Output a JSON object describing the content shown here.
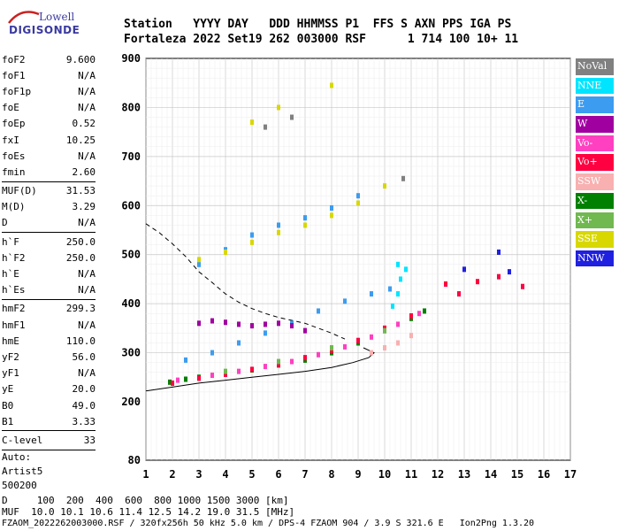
{
  "logo": {
    "line1": "Lowell",
    "line2": "DIGISONDE"
  },
  "header": {
    "line1": "Station   YYYY DAY   DDD HHMMSS P1  FFS S AXN PPS IGA PS",
    "line2": "Fortaleza 2022 Set19 262 003000 RSF      1 714 100 10+ 11"
  },
  "params": [
    {
      "k": "foF2",
      "v": "9.600"
    },
    {
      "k": "foF1",
      "v": "N/A"
    },
    {
      "k": "foF1p",
      "v": "N/A"
    },
    {
      "k": "foE",
      "v": "N/A"
    },
    {
      "k": "foEp",
      "v": "0.52"
    },
    {
      "k": "fxI",
      "v": "10.25"
    },
    {
      "k": "foEs",
      "v": "N/A"
    },
    {
      "k": "fmin",
      "v": "2.60"
    },
    {
      "k": "MUF(D)",
      "v": "31.53"
    },
    {
      "k": "M(D)",
      "v": "3.29"
    },
    {
      "k": "D",
      "v": "N/A"
    },
    {
      "k": "h`F",
      "v": "250.0"
    },
    {
      "k": "h`F2",
      "v": "250.0"
    },
    {
      "k": "h`E",
      "v": "N/A"
    },
    {
      "k": "h`Es",
      "v": "N/A"
    },
    {
      "k": "hmF2",
      "v": "299.3"
    },
    {
      "k": "hmF1",
      "v": "N/A"
    },
    {
      "k": "hmE",
      "v": "110.0"
    },
    {
      "k": "yF2",
      "v": "56.0"
    },
    {
      "k": "yF1",
      "v": "N/A"
    },
    {
      "k": "yE",
      "v": "20.0"
    },
    {
      "k": "B0",
      "v": "49.0"
    },
    {
      "k": "B1",
      "v": "3.33"
    },
    {
      "k": "C-level",
      "v": "33"
    }
  ],
  "auto": [
    "Auto:",
    "Artist5",
    "500200"
  ],
  "legend": [
    {
      "label": "NoVal",
      "color": "#808080"
    },
    {
      "label": "NNE",
      "color": "#00e5ff"
    },
    {
      "label": "E",
      "color": "#3c9cf0"
    },
    {
      "label": "W",
      "color": "#a000a0"
    },
    {
      "label": "Vo-",
      "color": "#ff40c0"
    },
    {
      "label": "Vo+",
      "color": "#ff0040"
    },
    {
      "label": "SSW",
      "color": "#f8b0b0"
    },
    {
      "label": "X-",
      "color": "#008000"
    },
    {
      "label": "X+",
      "color": "#70b850"
    },
    {
      "label": "SSE",
      "color": "#d8d800"
    },
    {
      "label": "NNW",
      "color": "#2020e0"
    }
  ],
  "bottom": {
    "line1": "D     100  200  400  600  800 1000 1500 3000 [km]",
    "line2": "MUF  10.0 10.1 10.6 11.4 12.5 14.2 19.0 31.5 [MHz]",
    "line3": "FZAOM_2022262003000.RSF / 320fx256h 50 kHz 5.0 km / DPS-4 FZAOM 904 / 3.9 S 321.6 E   Ion2Png 1.3.20"
  },
  "chart_data": {
    "type": "scatter",
    "xlim": [
      1,
      17
    ],
    "ylim": [
      80,
      900
    ],
    "x_ticks": [
      1,
      2,
      3,
      4,
      5,
      6,
      7,
      8,
      9,
      10,
      11,
      12,
      13,
      14,
      15,
      16,
      17
    ],
    "y_ticks": [
      80,
      200,
      300,
      400,
      500,
      600,
      700,
      800,
      900
    ],
    "grid": true,
    "series": [
      {
        "name": "X-",
        "color": "#008000",
        "points": [
          [
            1.9,
            240
          ],
          [
            2.5,
            246
          ],
          [
            3.0,
            250
          ],
          [
            4.0,
            258
          ],
          [
            5.0,
            265
          ],
          [
            6.0,
            275
          ],
          [
            7.0,
            285
          ],
          [
            8.0,
            300
          ],
          [
            9.0,
            320
          ],
          [
            10.0,
            345
          ],
          [
            11.0,
            370
          ],
          [
            11.5,
            385
          ]
        ]
      },
      {
        "name": "Vo+",
        "color": "#ff0040",
        "points": [
          [
            2.0,
            238
          ],
          [
            3.0,
            248
          ],
          [
            4.0,
            256
          ],
          [
            5.0,
            266
          ],
          [
            6.0,
            276
          ],
          [
            7.0,
            290
          ],
          [
            8.0,
            305
          ],
          [
            9.0,
            325
          ],
          [
            10.0,
            350
          ],
          [
            11.0,
            375
          ],
          [
            12.3,
            440
          ],
          [
            12.8,
            420
          ],
          [
            13.5,
            445
          ],
          [
            14.3,
            455
          ],
          [
            15.2,
            435
          ]
        ]
      },
      {
        "name": "Vo-",
        "color": "#ff40c0",
        "points": [
          [
            2.2,
            244
          ],
          [
            3.5,
            254
          ],
          [
            4.5,
            262
          ],
          [
            5.5,
            272
          ],
          [
            6.5,
            282
          ],
          [
            7.5,
            296
          ],
          [
            8.5,
            312
          ],
          [
            9.5,
            332
          ],
          [
            10.5,
            358
          ],
          [
            11.3,
            380
          ]
        ]
      },
      {
        "name": "E",
        "color": "#3c9cf0",
        "points": [
          [
            2.5,
            285
          ],
          [
            3.5,
            300
          ],
          [
            4.5,
            320
          ],
          [
            5.5,
            340
          ],
          [
            6.5,
            360
          ],
          [
            7.5,
            385
          ],
          [
            8.5,
            405
          ],
          [
            9.5,
            420
          ],
          [
            10.2,
            430
          ],
          [
            3.0,
            480
          ],
          [
            4.0,
            510
          ],
          [
            5.0,
            540
          ],
          [
            6.0,
            560
          ],
          [
            7.0,
            575
          ],
          [
            8.0,
            595
          ],
          [
            9.0,
            620
          ]
        ]
      },
      {
        "name": "NNE",
        "color": "#00e5ff",
        "points": [
          [
            10.3,
            395
          ],
          [
            10.5,
            420
          ],
          [
            10.6,
            450
          ],
          [
            10.8,
            470
          ],
          [
            10.5,
            480
          ]
        ]
      },
      {
        "name": "W",
        "color": "#a000a0",
        "points": [
          [
            3.0,
            360
          ],
          [
            3.5,
            365
          ],
          [
            4.0,
            362
          ],
          [
            4.5,
            358
          ],
          [
            5.0,
            355
          ],
          [
            5.5,
            358
          ],
          [
            6.0,
            360
          ],
          [
            6.5,
            355
          ],
          [
            7.0,
            345
          ]
        ]
      },
      {
        "name": "SSE",
        "color": "#d8d800",
        "points": [
          [
            3.0,
            490
          ],
          [
            4.0,
            505
          ],
          [
            5.0,
            525
          ],
          [
            6.0,
            545
          ],
          [
            7.0,
            560
          ],
          [
            8.0,
            580
          ],
          [
            9.0,
            605
          ],
          [
            10.0,
            640
          ],
          [
            5.0,
            770
          ],
          [
            6.0,
            800
          ],
          [
            8.0,
            845
          ]
        ]
      },
      {
        "name": "SSW",
        "color": "#f8b0b0",
        "points": [
          [
            9.5,
            300
          ],
          [
            10.0,
            310
          ],
          [
            10.5,
            320
          ],
          [
            11.0,
            335
          ]
        ]
      },
      {
        "name": "NNW",
        "color": "#2020e0",
        "points": [
          [
            13.0,
            470
          ],
          [
            14.3,
            505
          ],
          [
            14.7,
            465
          ]
        ]
      },
      {
        "name": "X+",
        "color": "#70b850",
        "points": [
          [
            4.0,
            262
          ],
          [
            6.0,
            282
          ],
          [
            8.0,
            310
          ],
          [
            10.0,
            345
          ]
        ]
      },
      {
        "name": "NoVal",
        "color": "#808080",
        "points": [
          [
            5.5,
            760
          ],
          [
            6.5,
            780
          ],
          [
            10.7,
            655
          ]
        ]
      }
    ],
    "curves": [
      {
        "name": "profile-dashed",
        "style": "dashed",
        "points": [
          [
            1.0,
            563
          ],
          [
            1.5,
            545
          ],
          [
            2.0,
            522
          ],
          [
            2.5,
            496
          ],
          [
            3.0,
            465
          ],
          [
            3.5,
            443
          ],
          [
            4.0,
            420
          ],
          [
            4.5,
            403
          ],
          [
            5.0,
            390
          ],
          [
            5.5,
            380
          ],
          [
            6.0,
            372
          ],
          [
            7.0,
            360
          ],
          [
            8.0,
            340
          ],
          [
            8.5,
            328
          ]
        ]
      },
      {
        "name": "virtual-height-trace",
        "style": "solid",
        "points": [
          [
            1.0,
            222
          ],
          [
            2.0,
            230
          ],
          [
            3.0,
            238
          ],
          [
            4.0,
            244
          ],
          [
            5.0,
            250
          ],
          [
            6.0,
            256
          ],
          [
            7.0,
            262
          ],
          [
            8.0,
            270
          ],
          [
            8.8,
            280
          ],
          [
            9.4,
            290
          ],
          [
            9.6,
            300
          ],
          [
            9.2,
            310
          ]
        ]
      }
    ]
  }
}
